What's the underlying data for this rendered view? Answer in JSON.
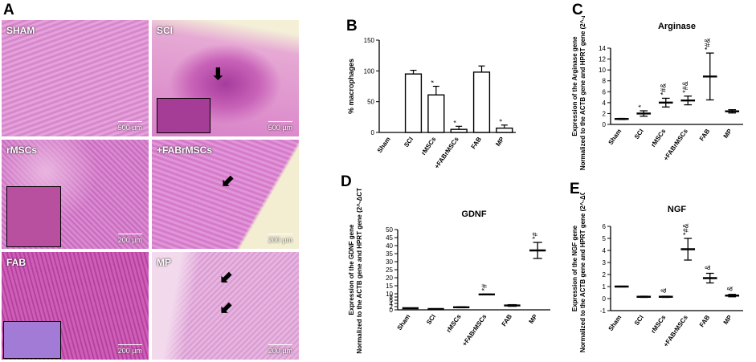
{
  "panel_A": {
    "letter": "A",
    "tiles": [
      {
        "label": "SHAM",
        "scale": "500 µm"
      },
      {
        "label": "SCI",
        "scale": "500 µm"
      },
      {
        "label": "rMSCs",
        "scale": "200 µm"
      },
      {
        "label": "+FABrMSCs",
        "scale": "200 µm"
      },
      {
        "label": "FAB",
        "scale": "200 µm"
      },
      {
        "label": "MP",
        "scale": "200 µm"
      }
    ]
  },
  "chart_data": [
    {
      "panel": "B",
      "type": "bar",
      "ylabel": "% macrophages",
      "categories": [
        "Sham",
        "SCI",
        "rMSCs",
        "+FABrMSCs",
        "FAB",
        "MP"
      ],
      "values": [
        0,
        95,
        61,
        5,
        98,
        7
      ],
      "errors": [
        0,
        6,
        14,
        5,
        10,
        5
      ],
      "marks": [
        "",
        "",
        "*",
        "*",
        "",
        "*"
      ],
      "ylim": [
        0,
        150
      ],
      "yticks": [
        0,
        50,
        100,
        150
      ]
    },
    {
      "panel": "C",
      "type": "scatter",
      "title": "Arginase",
      "ylabel_line1": "Expression of the Arginase gene",
      "ylabel_line2": "Normalized to the ACTB gene and HPRT gene (2^-ΔCT)",
      "categories": [
        "Sham",
        "SCI",
        "rMSCs",
        "+FABrMSCs",
        "FAB",
        "MP"
      ],
      "values": [
        1.0,
        2.0,
        4.0,
        4.4,
        8.8,
        2.4
      ],
      "errors": [
        0.1,
        0.5,
        0.8,
        0.8,
        4.3,
        0.3
      ],
      "marks": [
        "",
        "*",
        "*#&",
        "*#&",
        "*#&",
        ""
      ],
      "ylim": [
        0,
        14
      ],
      "yticks": [
        0,
        2,
        4,
        6,
        8,
        10,
        12,
        14
      ]
    },
    {
      "panel": "D",
      "type": "scatter",
      "title": "GDNF",
      "ylabel_line1": "Expression of the GDNF gene",
      "ylabel_line2": "Normalized to the ACTB gene and HPRT gene (2^-ΔCT)",
      "categories": [
        "Sham",
        "SCI",
        "rMSCs",
        "+FABrMSCs",
        "FAB",
        "MP"
      ],
      "values": [
        1.0,
        0.5,
        1.6,
        9.6,
        2.7,
        37
      ],
      "errors": [
        0.05,
        0.1,
        0.3,
        0.2,
        0.5,
        5
      ],
      "marks": [
        "",
        "",
        "",
        "*#",
        "",
        "*#"
      ],
      "ylim": [
        0,
        50
      ],
      "yticks": [
        0,
        2,
        4,
        6,
        8,
        10,
        15,
        20,
        25,
        30,
        35,
        40,
        45,
        50
      ]
    },
    {
      "panel": "E",
      "type": "scatter",
      "title": "NGF",
      "ylabel_line1": "Expression of the NGF gene",
      "ylabel_line2": "Normalized to the ACTB gene and HPRT gene (2^-ΔCT)",
      "categories": [
        "Sham",
        "SCI",
        "rMSCs",
        "+FABrMSCs",
        "FAB",
        "MP"
      ],
      "values": [
        1.0,
        0.15,
        0.15,
        4.1,
        1.7,
        0.25
      ],
      "errors": [
        0.03,
        0.05,
        0.05,
        0.9,
        0.4,
        0.1
      ],
      "marks": [
        "",
        "",
        "&",
        "*#&",
        "&",
        "&"
      ],
      "ylim": [
        -1,
        6
      ],
      "yticks": [
        -1,
        0,
        1,
        2,
        3,
        4,
        5,
        6
      ]
    }
  ]
}
